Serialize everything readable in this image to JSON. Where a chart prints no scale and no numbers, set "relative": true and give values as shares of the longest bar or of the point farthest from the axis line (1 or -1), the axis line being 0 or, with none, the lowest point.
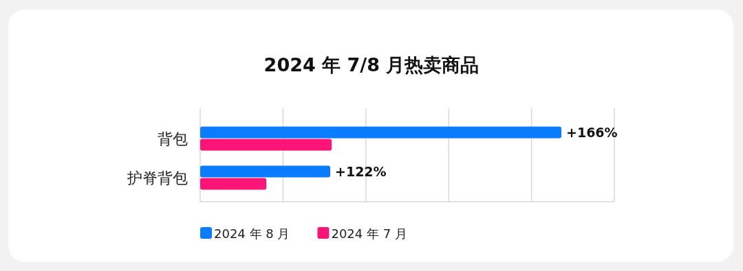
{
  "chart_data": {
    "type": "bar",
    "orientation": "horizontal",
    "relative": true,
    "title": "2024 年 7/8 月热卖商品",
    "categories": [
      "背包",
      "护脊背包"
    ],
    "series": [
      {
        "name": "2024 年 8 月",
        "color": "#0a7cff",
        "values": [
          1,
          0.36
        ]
      },
      {
        "name": "2024 年 7 月",
        "color": "#fc1477",
        "values": [
          0.364,
          0.183
        ]
      }
    ],
    "annotations": [
      {
        "text": "+166%",
        "x": 1,
        "y": "背包"
      },
      {
        "text": "+122%",
        "x": 0.36,
        "y": "护脊背包"
      }
    ],
    "grid": "x",
    "legend": "bottom"
  }
}
